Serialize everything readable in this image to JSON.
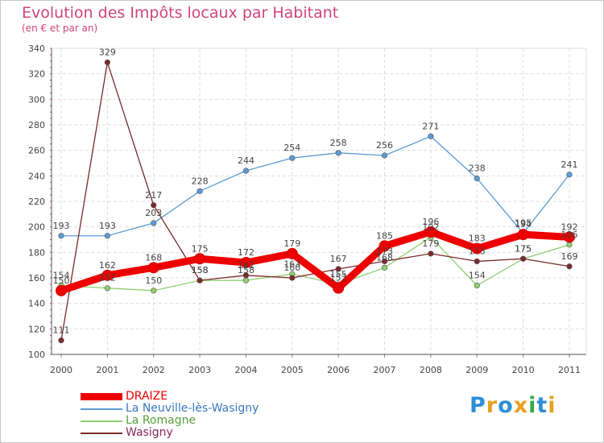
{
  "title": "Evolution des Impôts locaux par Habitant",
  "subtitle": "(en € et par an)",
  "logo": {
    "text": "Proxiti",
    "letter_colors": [
      "#2f8fd6",
      "#e8a020",
      "#2f8fd6",
      "#e8a020",
      "#3aa848",
      "#2f8fd6",
      "#e8a020"
    ]
  },
  "chart_data": {
    "type": "line",
    "title": "Evolution des Impôts locaux par Habitant",
    "subtitle": "(en € et par an)",
    "xlabel": "",
    "ylabel": "",
    "categories": [
      "2000",
      "2001",
      "2002",
      "2003",
      "2004",
      "2005",
      "2006",
      "2007",
      "2008",
      "2009",
      "2010",
      "2011"
    ],
    "yticks": [
      "100",
      "120",
      "140",
      "160",
      "180",
      "200",
      "220",
      "240",
      "260",
      "280",
      "300",
      "320",
      "340"
    ],
    "ylim": [
      100,
      340
    ],
    "grid": true,
    "legend_position": "bottom-left",
    "series": [
      {
        "name": "DRAIZE",
        "color": "#ee0000",
        "weight": "thick",
        "values": [
          150,
          162,
          168,
          175,
          172,
          179,
          152,
          185,
          196,
          183,
          194,
          192
        ],
        "labels": [
          "150",
          "162",
          "168",
          "175",
          "172",
          "179",
          "152",
          "185",
          "196",
          "183",
          "194",
          "192"
        ]
      },
      {
        "name": "La Neuville-lès-Wasigny",
        "color": "#5b9bd5",
        "weight": "thin",
        "values": [
          193,
          193,
          203,
          228,
          244,
          254,
          258,
          256,
          271,
          238,
          195,
          241
        ],
        "labels": [
          "193",
          "193",
          "203",
          "228",
          "244",
          "254",
          "258",
          "256",
          "271",
          "238",
          "195",
          "241"
        ]
      },
      {
        "name": "La Romagne",
        "color": "#90d070",
        "weight": "thin",
        "values": [
          154,
          152,
          150,
          158,
          158,
          163,
          155,
          168,
          192,
          154,
          175,
          186
        ],
        "labels": [
          "154",
          "152",
          "150",
          "158",
          "158",
          "163",
          "155",
          "168",
          "192",
          "154",
          "175",
          "186"
        ]
      },
      {
        "name": "Wasigny",
        "color": "#7a2a2a",
        "weight": "thin",
        "values": [
          111,
          329,
          217,
          158,
          162,
          160,
          167,
          173,
          179,
          173,
          175,
          169
        ],
        "labels": [
          "111",
          "329",
          "217",
          "158",
          "162",
          "160",
          "167",
          "173",
          "179",
          "173",
          "175",
          "169"
        ]
      }
    ]
  }
}
